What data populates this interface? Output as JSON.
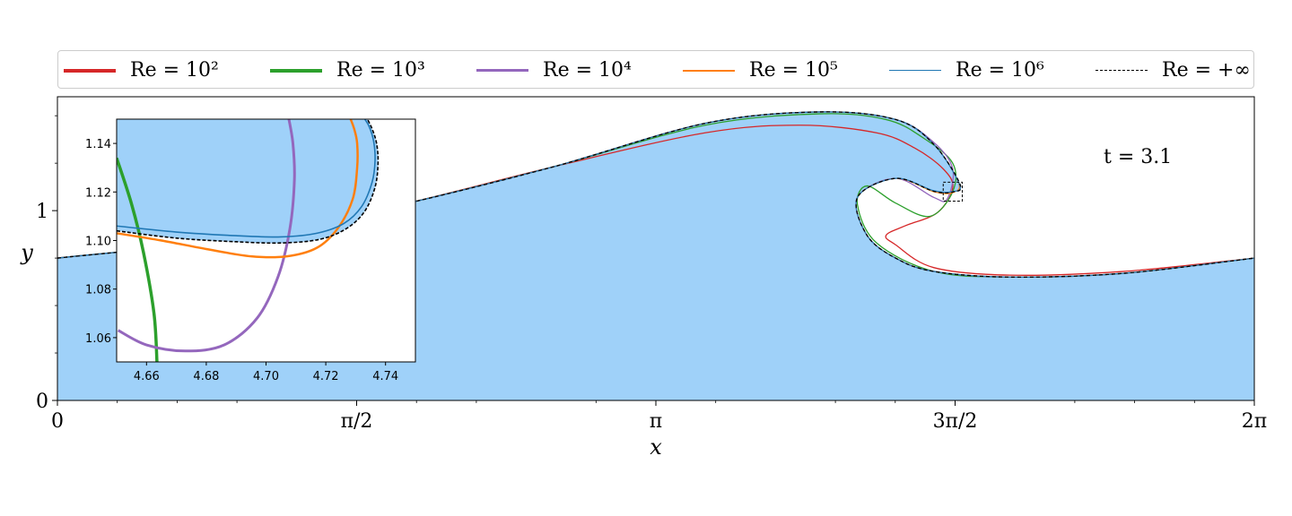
{
  "chart_data": {
    "type": "line",
    "xlabel": "x",
    "ylabel": "y",
    "xlim": [
      0,
      6.2832
    ],
    "ylim": [
      0,
      1.6
    ],
    "x_ticks": [
      {
        "value": 0,
        "label": "0"
      },
      {
        "value": 1.5708,
        "label": "π/2"
      },
      {
        "value": 3.1416,
        "label": "π"
      },
      {
        "value": 4.7124,
        "label": "3π/2"
      },
      {
        "value": 6.2832,
        "label": "2π"
      }
    ],
    "y_ticks": [
      {
        "value": 0,
        "label": "0"
      },
      {
        "value": 1,
        "label": "1"
      }
    ],
    "annotation": "t = 3.1",
    "legend_position": "top",
    "series": [
      {
        "name": "Re = 10²",
        "color": "#d62728",
        "style": "solid",
        "x": [
          0,
          1.0,
          1.8,
          2.6,
          3.4,
          3.9,
          4.3,
          4.5,
          4.65,
          4.7,
          4.62,
          4.45,
          4.35,
          4.4,
          4.6,
          5.0,
          5.6,
          6.2832
        ],
        "y": [
          0.75,
          0.86,
          1.03,
          1.23,
          1.41,
          1.45,
          1.41,
          1.33,
          1.22,
          1.12,
          0.99,
          0.92,
          0.87,
          0.82,
          0.7,
          0.66,
          0.68,
          0.75
        ]
      },
      {
        "name": "Re = 10³",
        "color": "#2ca02c",
        "style": "solid",
        "x": [
          0,
          1.0,
          1.8,
          2.6,
          3.4,
          4.0,
          4.35,
          4.55,
          4.7,
          4.7,
          4.58,
          4.4,
          4.25,
          4.2,
          4.3,
          4.6,
          5.0,
          5.6,
          6.2832
        ],
        "y": [
          0.75,
          0.86,
          1.03,
          1.23,
          1.45,
          1.51,
          1.48,
          1.38,
          1.25,
          1.1,
          0.97,
          1.04,
          1.13,
          1.03,
          0.83,
          0.68,
          0.65,
          0.67,
          0.75
        ]
      },
      {
        "name": "Re = 10⁴",
        "color": "#9467bd",
        "style": "solid",
        "x": [
          0,
          1.0,
          1.8,
          2.6,
          3.4,
          4.0,
          4.4,
          4.6,
          4.7,
          4.67,
          4.6,
          4.4,
          4.2,
          4.25,
          4.4,
          4.6,
          5.0,
          5.6,
          6.2832
        ],
        "y": [
          0.75,
          0.86,
          1.03,
          1.23,
          1.46,
          1.52,
          1.48,
          1.36,
          1.22,
          1.06,
          1.07,
          1.17,
          1.07,
          0.87,
          0.75,
          0.68,
          0.65,
          0.67,
          0.75
        ]
      },
      {
        "name": "Re = 10⁵",
        "color": "#ff7f0e",
        "style": "solid",
        "x": [
          0,
          1.0,
          1.8,
          2.6,
          3.4,
          4.0,
          4.4,
          4.6,
          4.73,
          4.7,
          4.6,
          4.4,
          4.2,
          4.25,
          4.4,
          4.6,
          5.0,
          5.6,
          6.2832
        ],
        "y": [
          0.75,
          0.86,
          1.03,
          1.23,
          1.46,
          1.52,
          1.48,
          1.35,
          1.15,
          1.095,
          1.1,
          1.17,
          1.07,
          0.87,
          0.75,
          0.68,
          0.65,
          0.67,
          0.75
        ]
      },
      {
        "name": "Re = 10⁶",
        "color": "#1f77b4",
        "style": "solid",
        "x": [
          0,
          1.0,
          1.8,
          2.6,
          3.4,
          4.0,
          4.4,
          4.6,
          4.735,
          4.7,
          4.6,
          4.4,
          4.2,
          4.25,
          4.4,
          4.6,
          5.0,
          5.6,
          6.2832
        ],
        "y": [
          0.75,
          0.86,
          1.03,
          1.23,
          1.46,
          1.52,
          1.48,
          1.35,
          1.14,
          1.1,
          1.105,
          1.17,
          1.07,
          0.87,
          0.75,
          0.68,
          0.65,
          0.67,
          0.75
        ]
      },
      {
        "name": "Re = +∞",
        "color": "#000000",
        "style": "dashed",
        "x": [
          0,
          1.0,
          1.8,
          2.6,
          3.4,
          4.0,
          4.4,
          4.6,
          4.738,
          4.7,
          4.6,
          4.4,
          4.2,
          4.25,
          4.4,
          4.6,
          5.0,
          5.6,
          6.2832
        ],
        "y": [
          0.75,
          0.86,
          1.03,
          1.23,
          1.46,
          1.52,
          1.48,
          1.35,
          1.14,
          1.098,
          1.102,
          1.17,
          1.07,
          0.87,
          0.75,
          0.68,
          0.65,
          0.67,
          0.75
        ]
      }
    ],
    "inset": {
      "xlim": [
        4.65,
        4.75
      ],
      "ylim": [
        1.05,
        1.15
      ],
      "x_ticks": [
        {
          "value": 4.66,
          "label": "4.66"
        },
        {
          "value": 4.68,
          "label": "4.68"
        },
        {
          "value": 4.7,
          "label": "4.70"
        },
        {
          "value": 4.72,
          "label": "4.72"
        },
        {
          "value": 4.74,
          "label": "4.74"
        }
      ],
      "y_ticks": [
        {
          "value": 1.06,
          "label": "1.06"
        },
        {
          "value": 1.08,
          "label": "1.08"
        },
        {
          "value": 1.1,
          "label": "1.10"
        },
        {
          "value": 1.12,
          "label": "1.12"
        },
        {
          "value": 1.14,
          "label": "1.14"
        }
      ],
      "series": [
        {
          "name": "Re = 10³",
          "color": "#2ca02c",
          "width": 3.5,
          "x": [
            4.65,
            4.655,
            4.659,
            4.6625,
            4.6635
          ],
          "y": [
            1.134,
            1.115,
            1.095,
            1.07,
            1.05
          ]
        },
        {
          "name": "Re = 10⁴",
          "color": "#9467bd",
          "width": 3,
          "x": [
            4.6505,
            4.66,
            4.673,
            4.686,
            4.697,
            4.704,
            4.708,
            4.7095,
            4.709,
            4.7075
          ],
          "y": [
            1.063,
            1.057,
            1.0545,
            1.057,
            1.068,
            1.085,
            1.105,
            1.125,
            1.14,
            1.151
          ]
        },
        {
          "name": "Re = 10⁵",
          "color": "#ff7f0e",
          "width": 2.5,
          "x": [
            4.65,
            4.665,
            4.68,
            4.695,
            4.707,
            4.717,
            4.724,
            4.729,
            4.7305,
            4.7305,
            4.7295,
            4.728
          ],
          "y": [
            1.103,
            1.1,
            1.0965,
            1.0935,
            1.0935,
            1.097,
            1.105,
            1.117,
            1.13,
            1.14,
            1.146,
            1.151
          ]
        },
        {
          "name": "Re = 10⁶",
          "color": "#1f77b4",
          "width": 1.6,
          "x": [
            4.65,
            4.67,
            4.69,
            4.705,
            4.717,
            4.726,
            4.732,
            4.7355,
            4.7365,
            4.736,
            4.7345,
            4.7325
          ],
          "y": [
            1.106,
            1.1035,
            1.102,
            1.1015,
            1.103,
            1.107,
            1.114,
            1.124,
            1.133,
            1.141,
            1.147,
            1.151
          ]
        },
        {
          "name": "Re = +∞",
          "color": "#000000",
          "width": 1.6,
          "dashed": true,
          "x": [
            4.65,
            4.67,
            4.69,
            4.705,
            4.718,
            4.727,
            4.733,
            4.7365,
            4.7375,
            4.737,
            4.7355,
            4.7335
          ],
          "y": [
            1.104,
            1.101,
            1.0995,
            1.099,
            1.1005,
            1.105,
            1.112,
            1.122,
            1.132,
            1.14,
            1.146,
            1.151
          ]
        }
      ]
    }
  },
  "legend": {
    "items": [
      {
        "label": "Re = 10²",
        "color": "#d62728",
        "width": 4,
        "dashed": false
      },
      {
        "label": "Re = 10³",
        "color": "#2ca02c",
        "width": 4,
        "dashed": false
      },
      {
        "label": "Re = 10⁴",
        "color": "#9467bd",
        "width": 3,
        "dashed": false
      },
      {
        "label": "Re = 10⁵",
        "color": "#ff7f0e",
        "width": 2,
        "dashed": false
      },
      {
        "label": "Re = 10⁶",
        "color": "#1f77b4",
        "width": 1.5,
        "dashed": false
      },
      {
        "label": "Re = +∞",
        "color": "#000000",
        "width": 1.5,
        "dashed": true
      }
    ]
  },
  "colors": {
    "fill": "#9fd1f9",
    "inset_box": "#000000"
  }
}
